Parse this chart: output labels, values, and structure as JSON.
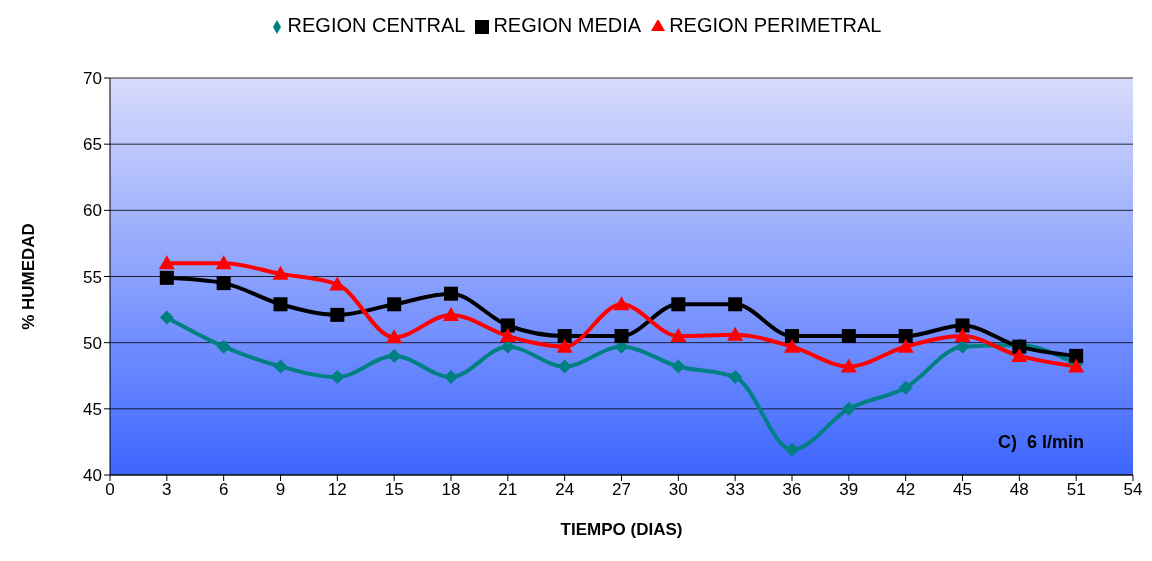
{
  "chart_data": {
    "type": "line",
    "xlabel": "TIEMPO  (DIAS)",
    "ylabel": "% HUMEDAD",
    "x": [
      3,
      6,
      9,
      12,
      15,
      18,
      21,
      24,
      27,
      30,
      33,
      36,
      39,
      42,
      45,
      48,
      51
    ],
    "series": [
      {
        "name": "REGION CENTRAL",
        "color": "#008080",
        "marker": "diamond",
        "values": [
          51.9,
          49.7,
          48.2,
          47.4,
          49.0,
          47.4,
          49.7,
          48.2,
          49.7,
          48.2,
          47.4,
          41.9,
          45.0,
          46.6,
          49.7,
          49.8,
          48.4
        ]
      },
      {
        "name": "REGION MEDIA",
        "color": "#000000",
        "marker": "square",
        "values": [
          54.9,
          54.5,
          52.9,
          52.1,
          52.9,
          53.7,
          51.3,
          50.5,
          50.5,
          52.9,
          52.9,
          50.5,
          50.5,
          50.5,
          51.3,
          49.7,
          49.0
        ]
      },
      {
        "name": "REGION PERIMETRAL",
        "color": "#ff0000",
        "marker": "triangle",
        "values": [
          56.0,
          56.0,
          55.2,
          54.4,
          50.4,
          52.1,
          50.5,
          49.7,
          52.9,
          50.5,
          50.6,
          49.7,
          48.2,
          49.7,
          50.5,
          49.0,
          48.2
        ]
      }
    ],
    "xlim": [
      0,
      54
    ],
    "xticks": [
      0,
      3,
      6,
      9,
      12,
      15,
      18,
      21,
      24,
      27,
      30,
      33,
      36,
      39,
      42,
      45,
      48,
      51,
      54
    ],
    "ylim": [
      40,
      70
    ],
    "yticks": [
      40,
      45,
      50,
      55,
      60,
      65,
      70
    ],
    "grid": "y",
    "legend": "top",
    "line_style": "solid",
    "annotations": [
      "C)  6 l/min"
    ]
  }
}
